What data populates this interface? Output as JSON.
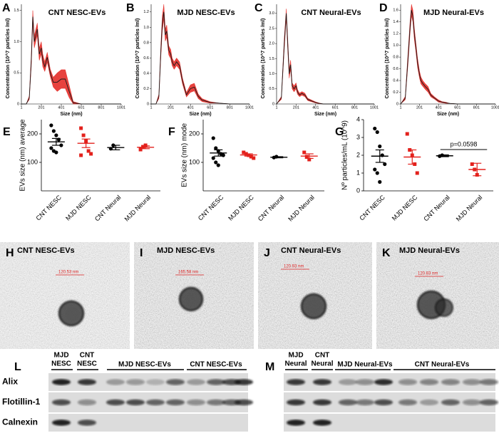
{
  "chart_data": [
    {
      "type": "line",
      "panel": "A",
      "title": "CNT NESC-EVs",
      "x_label": "Size (nm)",
      "y_label": "Concentration (10^7 particles /ml)",
      "x": [
        1,
        50,
        80,
        100,
        115,
        130,
        145,
        160,
        180,
        200,
        215,
        235,
        260,
        290,
        320,
        360,
        400,
        440,
        480,
        520,
        600,
        700,
        800,
        1001
      ],
      "values": [
        0,
        0,
        0.1,
        0.7,
        1.4,
        1.0,
        1.1,
        1.2,
        0.8,
        0.9,
        0.7,
        0.6,
        0.75,
        0.5,
        0.35,
        0.35,
        0.4,
        0.4,
        0.2,
        0.02,
        0,
        0,
        0,
        0
      ],
      "sems": [
        0,
        0,
        0.03,
        0.1,
        0.1,
        0.1,
        0.1,
        0.1,
        0.1,
        0.1,
        0.1,
        0.08,
        0.08,
        0.06,
        0.08,
        0.15,
        0.15,
        0.15,
        0.1,
        0.02,
        0,
        0,
        0,
        0
      ],
      "color": "#1a1a1a",
      "band_color": "#e3211c",
      "xlim": [
        1,
        1001
      ],
      "ylim": [
        0,
        1.6
      ],
      "xticks": [
        1,
        201,
        401,
        601,
        801,
        1001
      ],
      "yticks": [
        0,
        0.5,
        {
          "value": 1,
          "label": "1.0"
        },
        1.5
      ]
    },
    {
      "type": "line",
      "panel": "B",
      "title": "MJD NESC-EVs",
      "x_label": "Size (nm)",
      "y_label": "Concentration (10^7 particles /ml)",
      "x": [
        1,
        50,
        80,
        100,
        115,
        130,
        145,
        160,
        180,
        200,
        215,
        235,
        260,
        290,
        320,
        360,
        400,
        440,
        480,
        520,
        600,
        700,
        800,
        1001
      ],
      "values": [
        0,
        0,
        0.1,
        0.7,
        1.05,
        1.2,
        0.9,
        0.95,
        0.7,
        0.65,
        0.55,
        0.5,
        0.55,
        0.5,
        0.3,
        0.12,
        0.2,
        0.22,
        0.1,
        0.05,
        0.02,
        0.01,
        0,
        0
      ],
      "sems": [
        0,
        0,
        0.03,
        0.08,
        0.1,
        0.1,
        0.08,
        0.08,
        0.06,
        0.06,
        0.05,
        0.05,
        0.05,
        0.05,
        0.04,
        0.03,
        0.05,
        0.05,
        0.03,
        0.02,
        0.01,
        0,
        0,
        0
      ],
      "color": "#1a1a1a",
      "band_color": "#e3211c",
      "xlim": [
        1,
        1001
      ],
      "ylim": [
        0,
        1.3
      ],
      "xticks": [
        1,
        201,
        401,
        601,
        801,
        1001
      ],
      "yticks": [
        0,
        0.2,
        0.4,
        0.6,
        0.8,
        {
          "value": 1,
          "label": "1.0"
        },
        1.2
      ]
    },
    {
      "type": "line",
      "panel": "C",
      "title": "CNT Neural-EVs",
      "x_label": "Size (nm)",
      "y_label": "Concentration (10^7 particles /ml)",
      "x": [
        1,
        50,
        80,
        100,
        115,
        130,
        145,
        160,
        180,
        200,
        215,
        235,
        260,
        290,
        320,
        360,
        400,
        440,
        480,
        520,
        600,
        700,
        800,
        1001
      ],
      "values": [
        0,
        0.2,
        2.0,
        3.0,
        2.0,
        1.0,
        1.3,
        0.6,
        0.5,
        0.6,
        0.4,
        0.3,
        0.35,
        0.3,
        0.15,
        0.1,
        0.05,
        0.02,
        0,
        0,
        0,
        0,
        0,
        0
      ],
      "sems": [
        0,
        0.05,
        0.2,
        0.15,
        0.2,
        0.15,
        0.15,
        0.1,
        0.1,
        0.1,
        0.08,
        0.06,
        0.06,
        0.06,
        0.04,
        0.03,
        0.02,
        0.01,
        0,
        0,
        0,
        0,
        0,
        0
      ],
      "color": "#1a1a1a",
      "band_color": "#e3211c",
      "xlim": [
        1,
        1001
      ],
      "ylim": [
        0,
        3.3
      ],
      "xticks": [
        1,
        201,
        401,
        601,
        801,
        1001
      ],
      "yticks": [
        0,
        0.5,
        {
          "value": 1,
          "label": "1.0"
        },
        1.5,
        {
          "value": 2,
          "label": "2.0"
        },
        2.5,
        {
          "value": 3,
          "label": "3.0"
        }
      ]
    },
    {
      "type": "line",
      "panel": "D",
      "title": "MJD Neural-EVs",
      "x_label": "Size (nm)",
      "y_label": "Concentration (10^7 particles /ml)",
      "x": [
        1,
        50,
        80,
        100,
        115,
        130,
        145,
        160,
        180,
        200,
        215,
        235,
        260,
        290,
        320,
        360,
        400,
        440,
        480,
        520,
        600,
        700,
        800,
        1001
      ],
      "values": [
        0,
        0.1,
        0.8,
        1.3,
        1.6,
        1.5,
        1.2,
        1.0,
        0.7,
        0.5,
        0.4,
        0.35,
        0.3,
        0.25,
        0.15,
        0.1,
        0.05,
        0.03,
        0.02,
        0.01,
        0,
        0,
        0,
        0
      ],
      "sems": [
        0,
        0.03,
        0.1,
        0.1,
        0.1,
        0.1,
        0.1,
        0.08,
        0.08,
        0.06,
        0.06,
        0.05,
        0.05,
        0.05,
        0.03,
        0.02,
        0.02,
        0.01,
        0.01,
        0,
        0,
        0,
        0,
        0
      ],
      "color": "#1a1a1a",
      "band_color": "#e3211c",
      "xlim": [
        1,
        1001
      ],
      "ylim": [
        0,
        1.7
      ],
      "xticks": [
        1,
        201,
        401,
        601,
        801,
        1001
      ],
      "yticks": [
        0,
        0.2,
        0.4,
        0.6,
        0.8,
        {
          "value": 1,
          "label": "1.0"
        },
        1.2,
        1.4,
        1.6
      ]
    },
    {
      "type": "strip",
      "panel": "E",
      "y_label": "EVs size (nm) average",
      "categories": [
        "CNT NESC",
        "MJD NESC",
        "CNT Neural",
        "MJD Neural"
      ],
      "colors": [
        "#000000",
        "#e3211c",
        "#000000",
        "#e3211c"
      ],
      "markers": [
        "circle",
        "square",
        "circle",
        "square"
      ],
      "points": [
        [
          230,
          210,
          195,
          180,
          160,
          150,
          140,
          135
        ],
        [
          220,
          195,
          175,
          140,
          130,
          125
        ],
        [
          148,
          160
        ],
        [
          145,
          155,
          160
        ]
      ],
      "means": [
        172,
        167,
        152,
        153
      ],
      "sems": [
        12,
        15,
        8,
        5
      ],
      "ylim": [
        0,
        250
      ],
      "yticks": [
        100,
        200
      ]
    },
    {
      "type": "strip",
      "panel": "F",
      "y_label": "EVs size (nm) mode",
      "categories": [
        "CNT NESC",
        "MJD NESC",
        "CNT Neural",
        "MJD Neural"
      ],
      "colors": [
        "#000000",
        "#e3211c",
        "#000000",
        "#e3211c"
      ],
      "markers": [
        "circle",
        "square",
        "circle",
        "square"
      ],
      "points": [
        [
          185,
          150,
          140,
          130,
          125,
          115,
          100,
          90
        ],
        [
          135,
          130,
          125,
          120,
          115
        ],
        [
          117,
          120
        ],
        [
          135,
          120,
          110
        ]
      ],
      "means": [
        133,
        126,
        118,
        122
      ],
      "sems": [
        11,
        4,
        2,
        8
      ],
      "ylim": [
        0,
        250
      ],
      "yticks": [
        100,
        200
      ]
    },
    {
      "type": "strip",
      "panel": "G",
      "y_label": "Nº particles/mL (10^9)",
      "annotation": "p=0.0598",
      "categories": [
        "CNT NESC",
        "MJD NESC",
        "CNT Neural",
        "MJD Neural"
      ],
      "colors": [
        "#000000",
        "#e3211c",
        "#000000",
        "#e3211c"
      ],
      "markers": [
        "circle",
        "square",
        "circle",
        "square"
      ],
      "points": [
        [
          3.5,
          3.3,
          2.5,
          2.0,
          1.5,
          1.2,
          1.0,
          0.5
        ],
        [
          3.2,
          2.3,
          2.0,
          1.5,
          1.0
        ],
        [
          1.95,
          2.0
        ],
        [
          1.5,
          1.2,
          0.9
        ]
      ],
      "means": [
        1.95,
        1.9,
        1.97,
        1.2
      ],
      "sems": [
        0.35,
        0.4,
        0.05,
        0.35
      ],
      "ylim": [
        0,
        4
      ],
      "yticks": [
        0,
        1,
        2,
        3,
        4
      ]
    }
  ],
  "em_images": [
    {
      "panel": "H",
      "title": "CNT NESC-EVs",
      "scale_label": "120.53 nm"
    },
    {
      "panel": "I",
      "title": "MJD NESC-EVs",
      "scale_label": "165.58 nm"
    },
    {
      "panel": "J",
      "title": "CNT Neural-EVs",
      "scale_label": "120.93 nm"
    },
    {
      "panel": "K",
      "title": "MJD Neural-EVs",
      "scale_label": "120.83 nm"
    }
  ],
  "blots": [
    {
      "panel": "L",
      "headers": [
        [
          "MJD",
          "NESC"
        ],
        [
          "CNT",
          "NESC"
        ],
        [
          "MJD NESC-EVs"
        ],
        [
          "CNT NESC-EVs"
        ]
      ],
      "rows": [
        "Alix",
        "Flotillin-1",
        "Calnexin"
      ]
    },
    {
      "panel": "M",
      "headers": [
        [
          "MJD",
          "Neural"
        ],
        [
          "CNT",
          "Neural"
        ],
        [
          "MJD Neural-EVs"
        ],
        [
          "CNT Neural-EVs"
        ]
      ]
    }
  ]
}
